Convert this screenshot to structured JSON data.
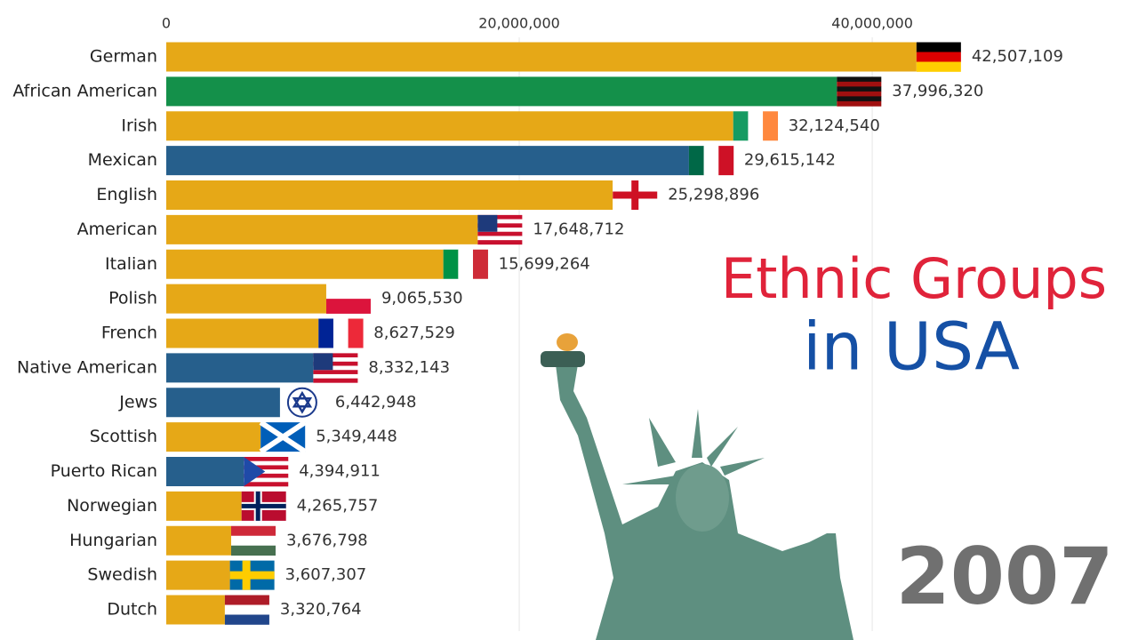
{
  "chart_data": {
    "type": "bar",
    "orientation": "horizontal",
    "title_lines": [
      "Ethnic Groups",
      "in USA"
    ],
    "title_colors": [
      "#e0233a",
      "#1550a5"
    ],
    "year": "2007",
    "categories": [
      "German",
      "African American",
      "Irish",
      "Mexican",
      "English",
      "American",
      "Italian",
      "Polish",
      "French",
      "Native American",
      "Jews",
      "Scottish",
      "Puerto Rican",
      "Norwegian",
      "Hungarian",
      "Swedish",
      "Dutch"
    ],
    "values": [
      42507109,
      37996320,
      32124540,
      29615142,
      25298896,
      17648712,
      15699264,
      9065530,
      8627529,
      8332143,
      6442948,
      5349448,
      4394911,
      4265757,
      3676798,
      3607307,
      3320764
    ],
    "value_labels": [
      "42,507,109",
      "37,996,320",
      "32,124,540",
      "29,615,142",
      "25,298,896",
      "17,648,712",
      "15,699,264",
      "9,065,530",
      "8,627,529",
      "8,332,143",
      "6,442,948",
      "5,349,448",
      "4,394,911",
      "4,265,757",
      "3,676,798",
      "3,607,307",
      "3,320,764"
    ],
    "colors": [
      "#e6a817",
      "#14904a",
      "#e6a817",
      "#265f8c",
      "#e6a817",
      "#e6a817",
      "#e6a817",
      "#e6a817",
      "#e6a817",
      "#265f8c",
      "#265f8c",
      "#e6a817",
      "#265f8c",
      "#e6a817",
      "#e6a817",
      "#e6a817",
      "#e6a817"
    ],
    "xlim": [
      0,
      54000000
    ],
    "xticks": [
      0,
      {
        "value": 20000000,
        "label": "20,000,000"
      },
      {
        "value": 40000000,
        "label": "40,000,000"
      }
    ],
    "grid": true
  }
}
